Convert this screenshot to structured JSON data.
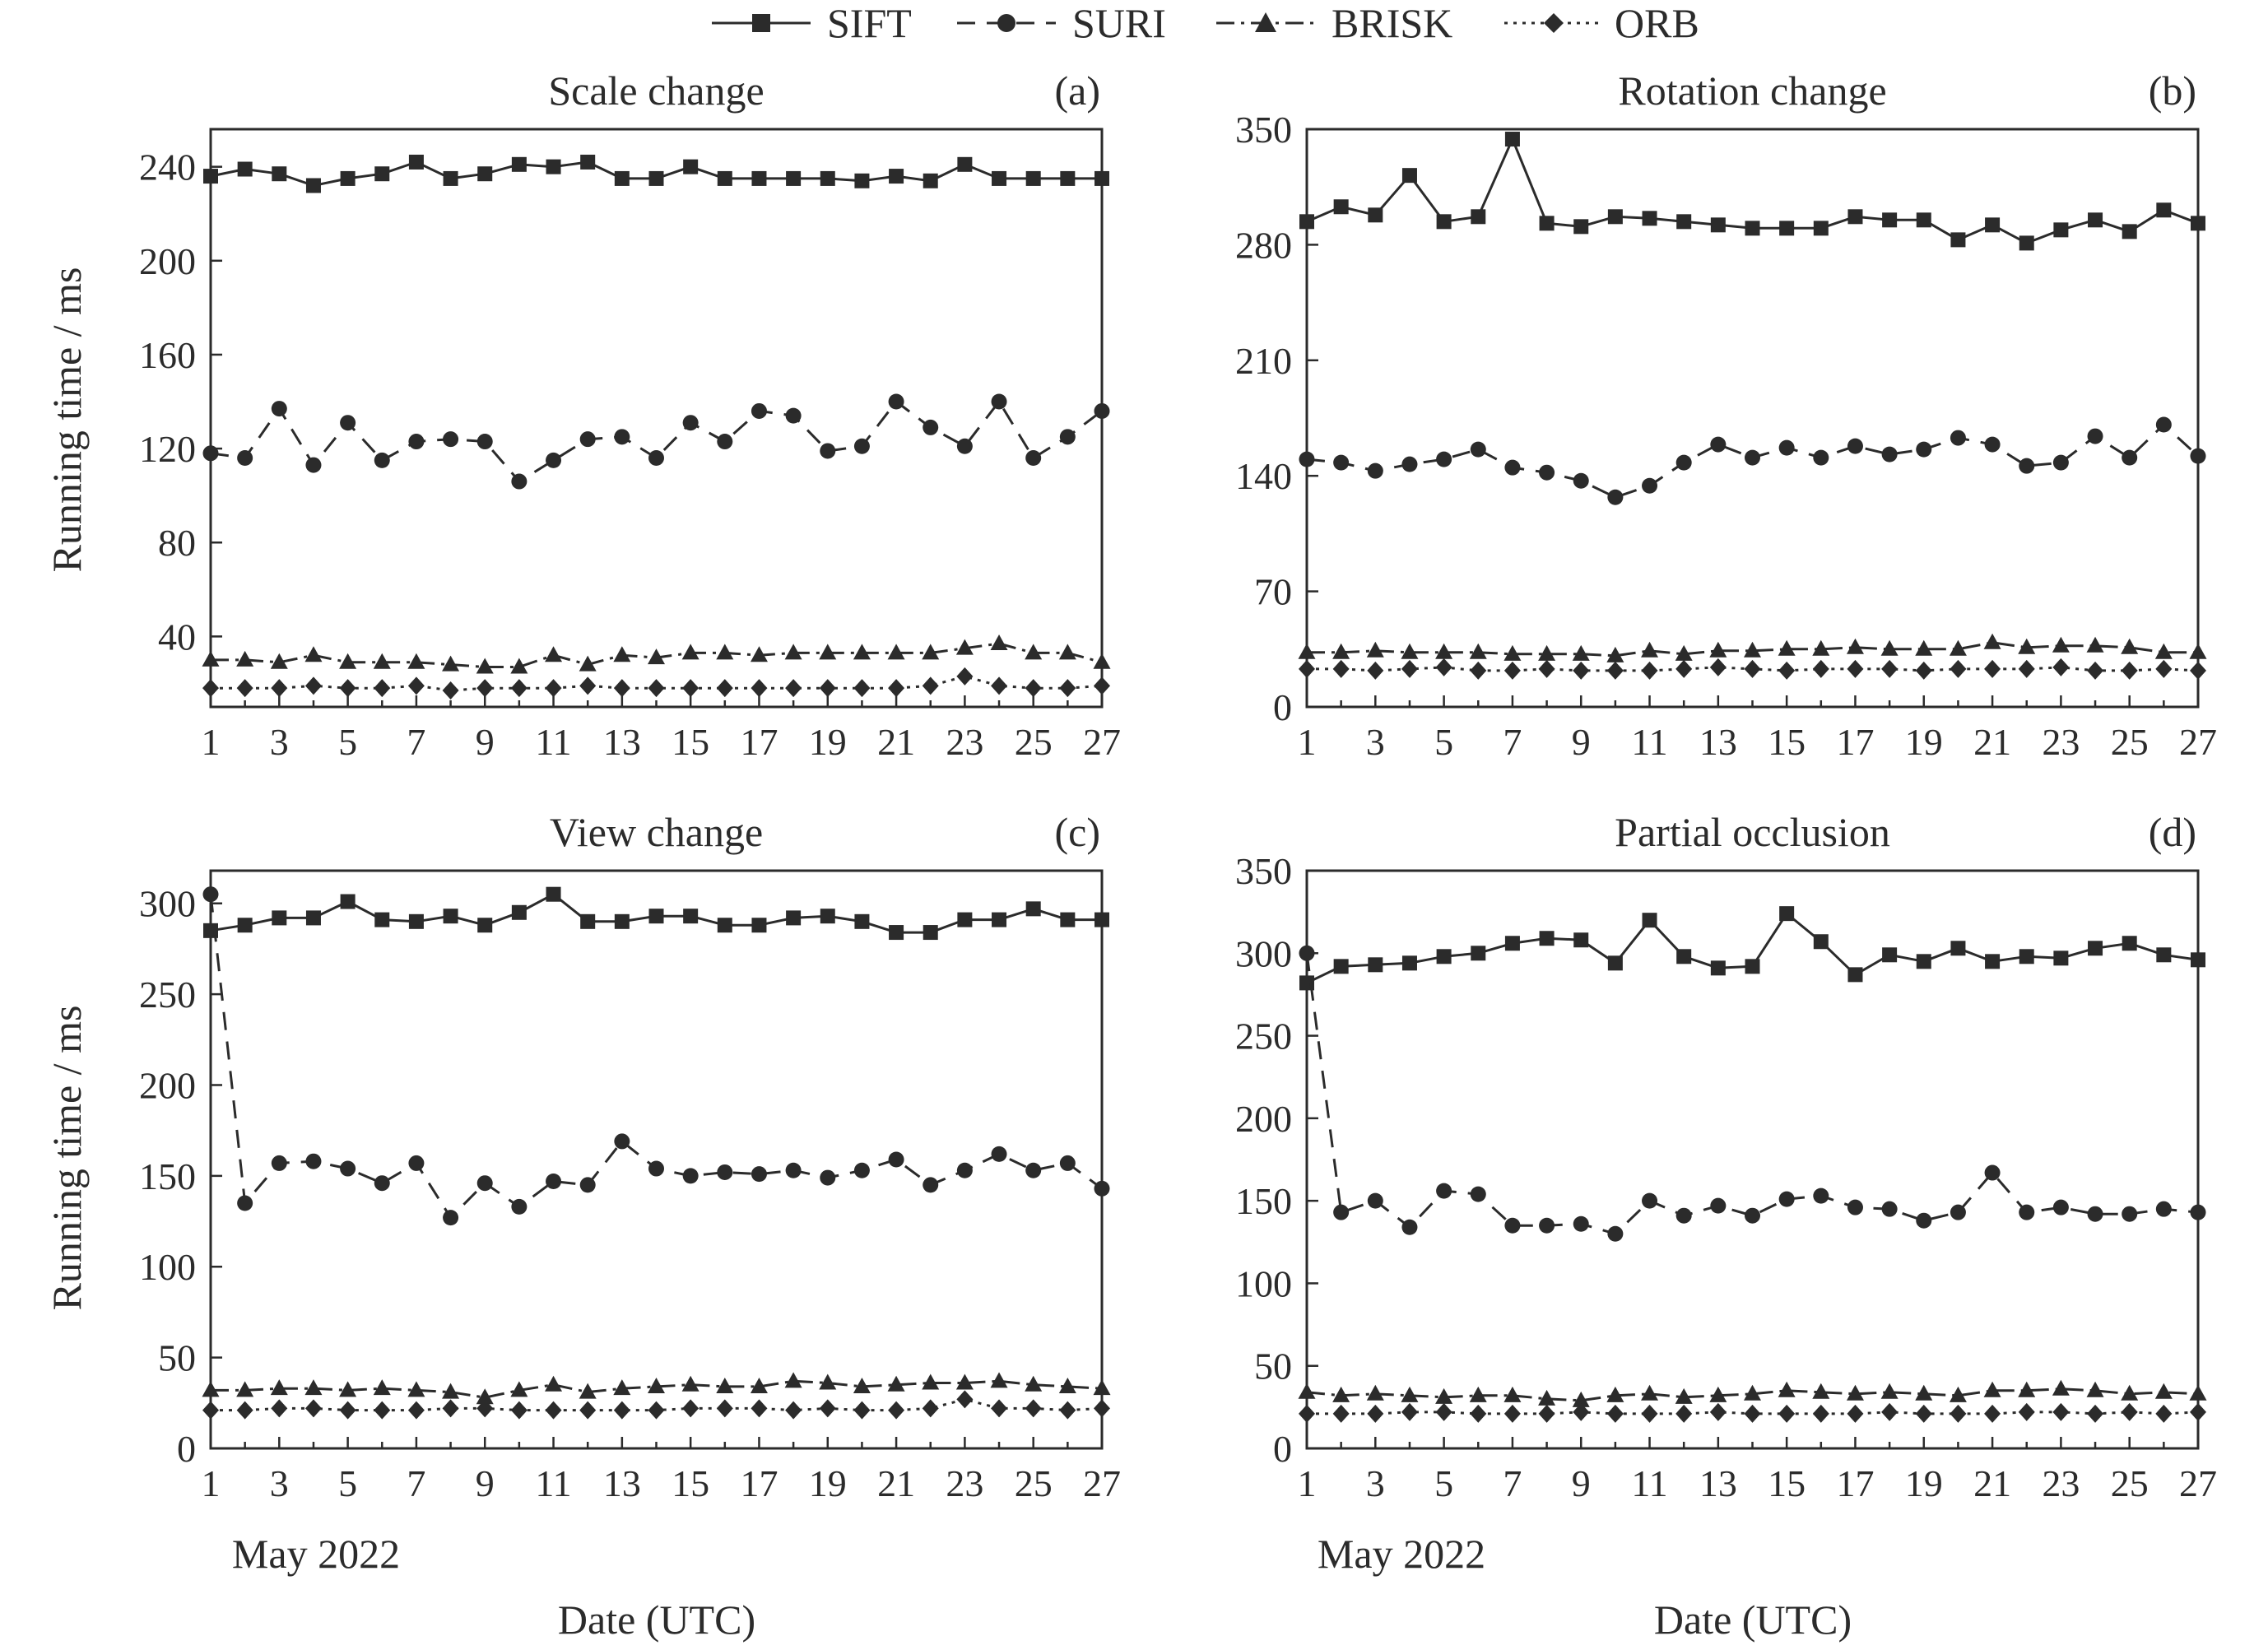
{
  "chart_data": {
    "type": "line",
    "legend": {
      "placement": "top-center",
      "entries": [
        "SIFT",
        "SURI",
        "BRISK",
        "ORB"
      ]
    },
    "series_styles": [
      {
        "name": "SIFT",
        "line": "solid",
        "marker": "square"
      },
      {
        "name": "SURI",
        "line": "dashed",
        "marker": "circle"
      },
      {
        "name": "BRISK",
        "line": "dash-dot",
        "marker": "triangle"
      },
      {
        "name": "ORB",
        "line": "dotted-dash",
        "marker": "diamond"
      }
    ],
    "ylabel": "Running time / ms",
    "xlabel": "Date (UTC)",
    "x_caption": "May 2022",
    "x": [
      1,
      2,
      3,
      4,
      5,
      6,
      7,
      8,
      9,
      10,
      11,
      12,
      13,
      14,
      15,
      16,
      17,
      18,
      19,
      20,
      21,
      22,
      23,
      24,
      25,
      26,
      27
    ],
    "xticks": [
      1,
      3,
      5,
      7,
      9,
      11,
      13,
      15,
      17,
      19,
      21,
      23,
      25,
      27
    ],
    "xlim": [
      1,
      27
    ],
    "grid": false,
    "colors": {
      "ink": "#2b2b2b",
      "background": "#ffffff"
    },
    "panels": [
      {
        "title": "Scale change",
        "letter": "(a)",
        "ylim": [
          10,
          256
        ],
        "yticks": [
          40,
          80,
          120,
          160,
          200,
          240
        ],
        "series": [
          {
            "name": "SIFT",
            "values": [
              236,
              239,
              237,
              232,
              235,
              237,
              242,
              235,
              237,
              241,
              240,
              242,
              235,
              235,
              240,
              235,
              235,
              235,
              235,
              234,
              236,
              234,
              241,
              235,
              235,
              235,
              235
            ]
          },
          {
            "name": "SURI",
            "values": [
              118,
              116,
              137,
              113,
              131,
              115,
              123,
              124,
              123,
              106,
              115,
              124,
              125,
              116,
              131,
              123,
              136,
              134,
              119,
              121,
              140,
              129,
              121,
              140,
              116,
              125,
              136
            ]
          },
          {
            "name": "BRISK",
            "values": [
              30,
              30,
              29,
              32,
              29,
              29,
              29,
              28,
              27,
              27,
              32,
              28,
              32,
              31,
              33,
              33,
              32,
              33,
              33,
              33,
              33,
              33,
              35,
              37,
              33,
              33,
              29
            ]
          },
          {
            "name": "ORB",
            "values": [
              18,
              18,
              18,
              19,
              18,
              18,
              19,
              17,
              18,
              18,
              18,
              19,
              18,
              18,
              18,
              18,
              18,
              18,
              18,
              18,
              18,
              19,
              23,
              19,
              18,
              18,
              19
            ]
          }
        ]
      },
      {
        "title": "Rotation change",
        "letter": "(b)",
        "ylim": [
          0,
          350
        ],
        "yticks": [
          0,
          70,
          140,
          210,
          280,
          350
        ],
        "series": [
          {
            "name": "SIFT",
            "values": [
              294,
              303,
              298,
              322,
              294,
              297,
              344,
              293,
              291,
              297,
              296,
              294,
              292,
              290,
              290,
              290,
              297,
              295,
              295,
              283,
              292,
              281,
              289,
              295,
              288,
              301,
              293
            ]
          },
          {
            "name": "SURI",
            "values": [
              150,
              148,
              143,
              147,
              150,
              156,
              145,
              142,
              137,
              127,
              134,
              148,
              159,
              151,
              157,
              151,
              158,
              153,
              156,
              163,
              159,
              146,
              148,
              164,
              151,
              171,
              152
            ]
          },
          {
            "name": "BRISK",
            "values": [
              33,
              33,
              34,
              33,
              33,
              33,
              32,
              32,
              32,
              31,
              34,
              32,
              34,
              34,
              35,
              35,
              36,
              35,
              35,
              35,
              39,
              36,
              37,
              37,
              36,
              33,
              33
            ]
          },
          {
            "name": "ORB",
            "values": [
              23,
              23,
              22,
              23,
              24,
              22,
              22,
              23,
              22,
              22,
              22,
              23,
              24,
              23,
              22,
              23,
              23,
              23,
              22,
              23,
              23,
              23,
              24,
              22,
              22,
              23,
              22
            ]
          }
        ]
      },
      {
        "title": "View change",
        "letter": "(c)",
        "ylim": [
          0,
          318
        ],
        "yticks": [
          0,
          50,
          100,
          150,
          200,
          250,
          300
        ],
        "series": [
          {
            "name": "SIFT",
            "values": [
              285,
              288,
              292,
              292,
              301,
              291,
              290,
              293,
              288,
              295,
              305,
              290,
              290,
              293,
              293,
              288,
              288,
              292,
              293,
              290,
              284,
              284,
              291,
              291,
              297,
              291,
              291
            ]
          },
          {
            "name": "SURI",
            "values": [
              305,
              135,
              157,
              158,
              154,
              146,
              157,
              127,
              146,
              133,
              147,
              145,
              169,
              154,
              150,
              152,
              151,
              153,
              149,
              153,
              159,
              145,
              153,
              162,
              153,
              157,
              143
            ]
          },
          {
            "name": "BRISK",
            "values": [
              32,
              32,
              33,
              33,
              32,
              33,
              32,
              31,
              28,
              32,
              35,
              31,
              33,
              34,
              35,
              34,
              34,
              37,
              36,
              34,
              35,
              36,
              36,
              37,
              35,
              34,
              33
            ]
          },
          {
            "name": "ORB",
            "values": [
              21,
              21,
              22,
              22,
              21,
              21,
              21,
              22,
              22,
              21,
              21,
              21,
              21,
              21,
              22,
              22,
              22,
              21,
              22,
              21,
              21,
              22,
              27,
              22,
              22,
              21,
              22
            ]
          }
        ]
      },
      {
        "title": "Partial occlusion",
        "letter": "(d)",
        "ylim": [
          0,
          350
        ],
        "yticks": [
          0,
          50,
          100,
          150,
          200,
          250,
          300,
          350
        ],
        "series": [
          {
            "name": "SIFT",
            "values": [
              282,
              292,
              293,
              294,
              298,
              300,
              306,
              309,
              308,
              294,
              320,
              298,
              291,
              292,
              324,
              307,
              287,
              299,
              295,
              303,
              295,
              298,
              297,
              303,
              306,
              299,
              296
            ]
          },
          {
            "name": "SURI",
            "values": [
              300,
              143,
              150,
              134,
              156,
              154,
              135,
              135,
              136,
              130,
              150,
              141,
              147,
              141,
              151,
              153,
              146,
              145,
              138,
              143,
              167,
              143,
              146,
              142,
              142,
              145,
              143
            ]
          },
          {
            "name": "BRISK",
            "values": [
              34,
              32,
              33,
              32,
              31,
              32,
              32,
              30,
              29,
              32,
              33,
              31,
              32,
              33,
              35,
              34,
              33,
              34,
              33,
              32,
              35,
              35,
              36,
              35,
              33,
              34,
              33
            ]
          },
          {
            "name": "ORB",
            "values": [
              21,
              21,
              21,
              22,
              22,
              21,
              21,
              21,
              22,
              21,
              21,
              21,
              22,
              21,
              21,
              21,
              21,
              22,
              21,
              21,
              21,
              22,
              22,
              21,
              22,
              21,
              22
            ]
          }
        ]
      }
    ]
  }
}
